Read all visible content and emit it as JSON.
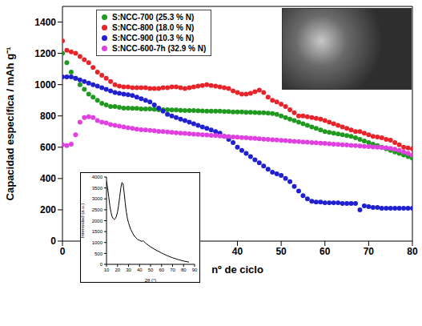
{
  "chart_data": [
    {
      "type": "line",
      "x_label": "nº de ciclo",
      "y_label": "Capacidad específica / mAh g⁻¹",
      "x": [
        0,
        1,
        2,
        3,
        4,
        5,
        6,
        7,
        8,
        9,
        10,
        11,
        12,
        13,
        14,
        15,
        16,
        17,
        18,
        19,
        20,
        21,
        22,
        23,
        24,
        25,
        26,
        27,
        28,
        29,
        30,
        31,
        32,
        33,
        34,
        35,
        36,
        37,
        38,
        39,
        40,
        41,
        42,
        43,
        44,
        45,
        46,
        47,
        48,
        49,
        50,
        51,
        52,
        53,
        54,
        55,
        56,
        57,
        58,
        59,
        60,
        61,
        62,
        63,
        64,
        65,
        66,
        67,
        68,
        69,
        70,
        71,
        72,
        73,
        74,
        75,
        76,
        77,
        78,
        79,
        80
      ],
      "xlim": [
        0,
        80
      ],
      "xticks": [
        0,
        10,
        20,
        30,
        40,
        50,
        60,
        70,
        80
      ],
      "ylim": [
        0,
        1500
      ],
      "yticks": [
        0,
        200,
        400,
        600,
        800,
        1000,
        1200,
        1400
      ],
      "grid": false,
      "legend": "upper left",
      "series": [
        {
          "name": "S:NCC-700 (25.3 % N)",
          "color": "#1f9a1f",
          "marker": "circle",
          "line_style": "none",
          "values": [
            1200,
            1140,
            1080,
            1040,
            1000,
            970,
            940,
            920,
            900,
            880,
            870,
            860,
            860,
            855,
            850,
            850,
            848,
            848,
            845,
            845,
            845,
            842,
            840,
            840,
            840,
            838,
            838,
            836,
            835,
            835,
            835,
            833,
            832,
            830,
            830,
            830,
            830,
            828,
            828,
            826,
            825,
            825,
            823,
            823,
            822,
            820,
            820,
            818,
            815,
            810,
            800,
            790,
            780,
            770,
            760,
            750,
            740,
            730,
            720,
            710,
            700,
            695,
            690,
            685,
            680,
            675,
            670,
            660,
            650,
            640,
            630,
            620,
            610,
            600,
            590,
            580,
            570,
            560,
            550,
            540,
            530
          ]
        },
        {
          "name": "S:NCC-800 (18.0 % N)",
          "color": "#e8242a",
          "marker": "circle",
          "line_style": "none",
          "values": [
            1280,
            1220,
            1210,
            1200,
            1180,
            1160,
            1140,
            1110,
            1080,
            1060,
            1040,
            1020,
            1000,
            990,
            985,
            985,
            980,
            980,
            980,
            980,
            975,
            975,
            975,
            980,
            980,
            985,
            985,
            980,
            975,
            980,
            985,
            990,
            995,
            1000,
            995,
            990,
            985,
            980,
            975,
            960,
            950,
            940,
            940,
            945,
            955,
            965,
            950,
            920,
            900,
            890,
            875,
            860,
            840,
            820,
            800,
            800,
            795,
            790,
            785,
            780,
            770,
            760,
            750,
            740,
            730,
            720,
            710,
            700,
            700,
            690,
            680,
            670,
            665,
            660,
            650,
            645,
            630,
            615,
            600,
            595,
            590
          ]
        },
        {
          "name": "S:NCC-900 (10.3 % N)",
          "color": "#2020d0",
          "marker": "circle",
          "line_style": "none",
          "values": [
            1050,
            1050,
            1050,
            1040,
            1030,
            1020,
            1010,
            1000,
            990,
            980,
            970,
            960,
            950,
            945,
            940,
            935,
            930,
            920,
            910,
            900,
            890,
            870,
            850,
            830,
            810,
            800,
            790,
            780,
            770,
            760,
            750,
            740,
            730,
            720,
            710,
            700,
            690,
            670,
            650,
            630,
            600,
            580,
            560,
            540,
            520,
            500,
            480,
            460,
            440,
            430,
            420,
            400,
            380,
            350,
            320,
            290,
            270,
            255,
            250,
            250,
            245,
            245,
            245,
            245,
            240,
            240,
            240,
            240,
            200,
            225,
            220,
            215,
            215,
            210,
            210,
            210,
            210,
            210,
            210,
            210,
            210
          ]
        },
        {
          "name": "S:NCC-600-7h (32.9 % N)",
          "color": "#e040e0",
          "marker": "circle",
          "line_style": "none",
          "values": [
            615,
            610,
            620,
            680,
            760,
            790,
            795,
            790,
            770,
            760,
            755,
            745,
            740,
            735,
            730,
            725,
            720,
            715,
            712,
            710,
            708,
            705,
            702,
            700,
            698,
            695,
            692,
            690,
            688,
            686,
            684,
            682,
            680,
            678,
            676,
            674,
            672,
            670,
            668,
            666,
            664,
            662,
            660,
            658,
            656,
            654,
            652,
            650,
            648,
            646,
            644,
            642,
            640,
            638,
            636,
            634,
            632,
            630,
            628,
            626,
            624,
            622,
            620,
            618,
            616,
            614,
            612,
            610,
            608,
            606,
            604,
            602,
            600,
            598,
            596,
            592,
            588,
            580,
            570,
            560,
            550
          ]
        }
      ]
    },
    {
      "type": "line",
      "x_label": "2θ (°)",
      "y_label": "Intensidad (a.u.)",
      "x": [
        10,
        11,
        12,
        13,
        14,
        15,
        16,
        17,
        18,
        19,
        20,
        21,
        22,
        23,
        24,
        25,
        26,
        27,
        28,
        29,
        30,
        32,
        34,
        36,
        38,
        40,
        42,
        43,
        44,
        46,
        50,
        55,
        60,
        65,
        70,
        75,
        80,
        85
      ],
      "xlim": [
        10,
        90
      ],
      "xticks": [
        10,
        20,
        30,
        40,
        50,
        60,
        70,
        80,
        90
      ],
      "ylim": [
        0,
        4000
      ],
      "yticks": [
        0,
        500,
        1000,
        1500,
        2000,
        2500,
        3000,
        3500,
        4000
      ],
      "grid": false,
      "series": [
        {
          "color": "#000000",
          "marker": "none",
          "line_style": "solid",
          "values": [
            3800,
            3500,
            3100,
            2700,
            2400,
            2200,
            2100,
            2050,
            2100,
            2200,
            2400,
            2700,
            3100,
            3500,
            3750,
            3700,
            3300,
            2800,
            2400,
            2100,
            1900,
            1600,
            1400,
            1250,
            1150,
            1100,
            1050,
            1080,
            1050,
            950,
            800,
            650,
            520,
            400,
            300,
            220,
            150,
            100
          ]
        }
      ]
    }
  ]
}
